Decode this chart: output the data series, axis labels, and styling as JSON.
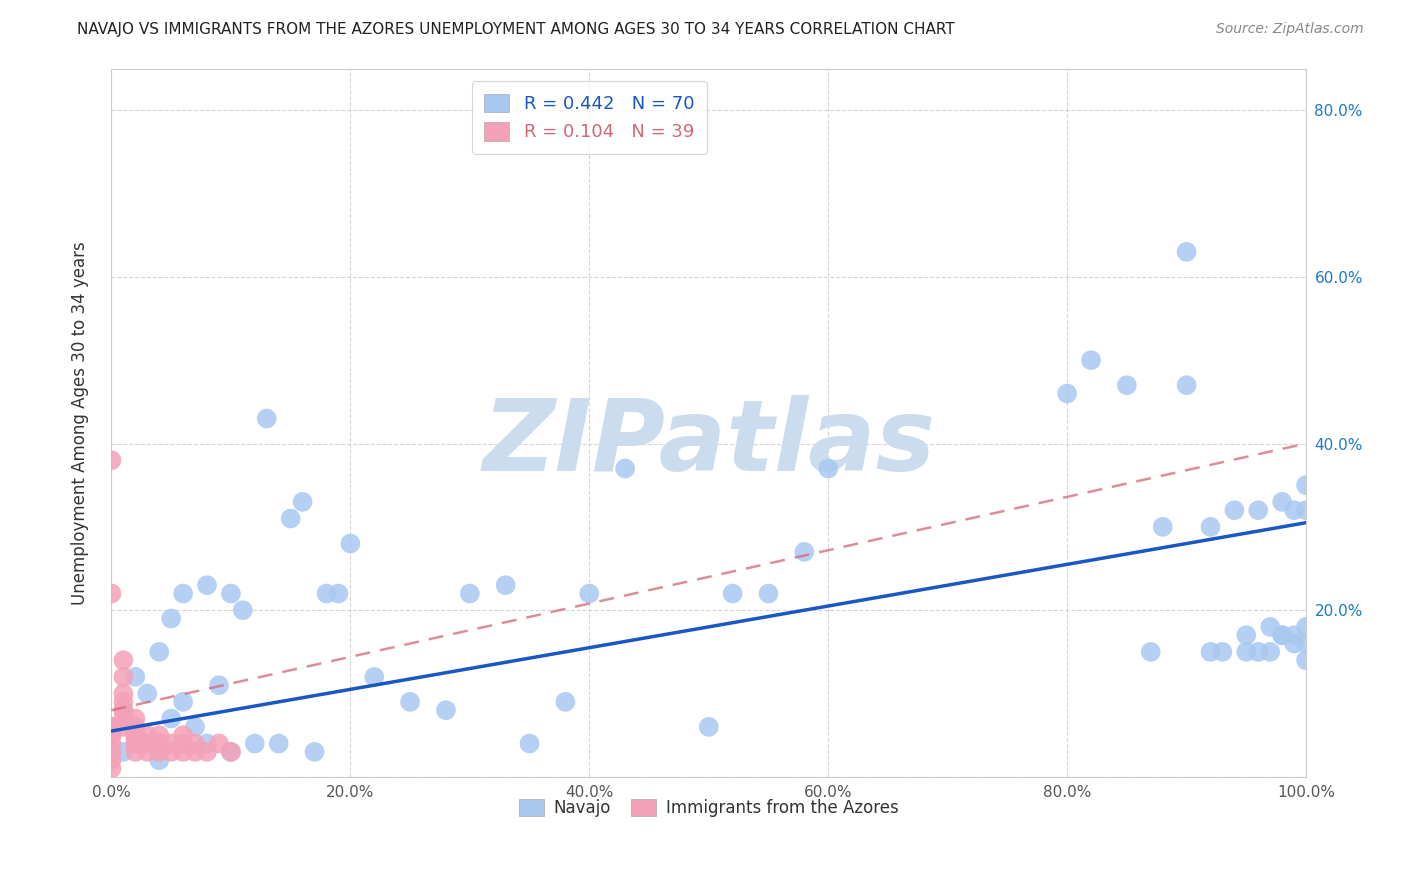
{
  "title": "NAVAJO VS IMMIGRANTS FROM THE AZORES UNEMPLOYMENT AMONG AGES 30 TO 34 YEARS CORRELATION CHART",
  "source": "Source: ZipAtlas.com",
  "ylabel": "Unemployment Among Ages 30 to 34 years",
  "xlim": [
    0,
    1.0
  ],
  "ylim": [
    0,
    0.85
  ],
  "navajo_R": 0.442,
  "navajo_N": 70,
  "azores_R": 0.104,
  "azores_N": 39,
  "navajo_color": "#a8c8f0",
  "azores_color": "#f4a0b8",
  "navajo_line_color": "#1a56c4",
  "azores_line_color": "#d06878",
  "background_color": "#ffffff",
  "watermark": "ZIPatlas",
  "watermark_color": "#ccdcef",
  "navajo_x": [
    0.01,
    0.01,
    0.02,
    0.02,
    0.03,
    0.03,
    0.04,
    0.04,
    0.05,
    0.05,
    0.06,
    0.06,
    0.07,
    0.08,
    0.08,
    0.09,
    0.1,
    0.1,
    0.11,
    0.12,
    0.13,
    0.14,
    0.15,
    0.16,
    0.17,
    0.18,
    0.19,
    0.2,
    0.22,
    0.25,
    0.28,
    0.3,
    0.33,
    0.35,
    0.38,
    0.4,
    0.43,
    0.5,
    0.52,
    0.55,
    0.58,
    0.6,
    0.8,
    0.82,
    0.85,
    0.87,
    0.88,
    0.9,
    0.9,
    0.92,
    0.92,
    0.93,
    0.94,
    0.95,
    0.95,
    0.96,
    0.96,
    0.97,
    0.97,
    0.98,
    0.98,
    0.98,
    0.99,
    0.99,
    0.99,
    1.0,
    1.0,
    1.0,
    1.0,
    1.0
  ],
  "navajo_y": [
    0.08,
    0.03,
    0.12,
    0.05,
    0.1,
    0.04,
    0.15,
    0.02,
    0.07,
    0.19,
    0.09,
    0.22,
    0.06,
    0.04,
    0.23,
    0.11,
    0.22,
    0.03,
    0.2,
    0.04,
    0.43,
    0.04,
    0.31,
    0.33,
    0.03,
    0.22,
    0.22,
    0.28,
    0.12,
    0.09,
    0.08,
    0.22,
    0.23,
    0.04,
    0.09,
    0.22,
    0.37,
    0.06,
    0.22,
    0.22,
    0.27,
    0.37,
    0.46,
    0.5,
    0.47,
    0.15,
    0.3,
    0.47,
    0.63,
    0.15,
    0.3,
    0.15,
    0.32,
    0.15,
    0.17,
    0.15,
    0.32,
    0.15,
    0.18,
    0.17,
    0.17,
    0.33,
    0.17,
    0.16,
    0.32,
    0.18,
    0.16,
    0.14,
    0.32,
    0.35
  ],
  "azores_x": [
    0.0,
    0.0,
    0.0,
    0.0,
    0.0,
    0.0,
    0.0,
    0.0,
    0.0,
    0.0,
    0.01,
    0.01,
    0.01,
    0.01,
    0.01,
    0.01,
    0.01,
    0.02,
    0.02,
    0.02,
    0.02,
    0.02,
    0.02,
    0.03,
    0.03,
    0.03,
    0.04,
    0.04,
    0.04,
    0.05,
    0.05,
    0.06,
    0.06,
    0.06,
    0.07,
    0.07,
    0.08,
    0.09,
    0.1
  ],
  "azores_y": [
    0.38,
    0.06,
    0.05,
    0.04,
    0.03,
    0.02,
    0.01,
    0.06,
    0.05,
    0.22,
    0.1,
    0.12,
    0.14,
    0.06,
    0.07,
    0.08,
    0.09,
    0.04,
    0.05,
    0.06,
    0.07,
    0.03,
    0.04,
    0.05,
    0.03,
    0.04,
    0.03,
    0.04,
    0.05,
    0.03,
    0.04,
    0.03,
    0.04,
    0.05,
    0.03,
    0.04,
    0.03,
    0.04,
    0.03
  ],
  "navajo_trend_x": [
    0.0,
    1.0
  ],
  "navajo_trend_y": [
    0.055,
    0.305
  ],
  "azores_trend_x": [
    0.0,
    1.0
  ],
  "azores_trend_y": [
    0.08,
    0.4
  ]
}
